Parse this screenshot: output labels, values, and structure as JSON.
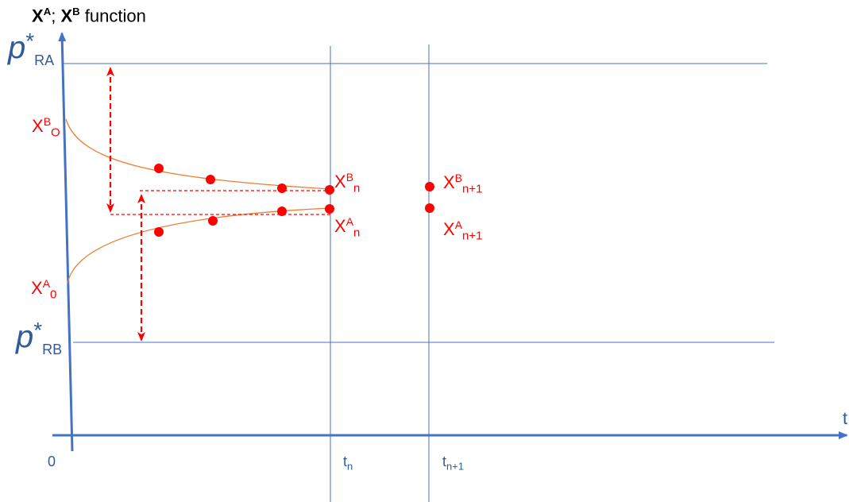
{
  "title": {
    "a": "X",
    "a_sup": "A",
    "sep": "; ",
    "b": "X",
    "b_sup": "B",
    "rest": " function"
  },
  "y_labels": {
    "p_ra": {
      "main": "p",
      "sup": "*",
      "sub": "RA"
    },
    "p_rb": {
      "main": "p",
      "sup": "*",
      "sub": "RB"
    }
  },
  "point_labels": {
    "xb0": {
      "main": "X",
      "sup": "B",
      "sub": "O"
    },
    "xa0": {
      "main": "X",
      "sup": "A",
      "sub": "0"
    },
    "xbn": {
      "main": "X",
      "sup": "B",
      "sub": "n"
    },
    "xan": {
      "main": "X",
      "sup": "A",
      "sub": "n"
    },
    "xbn1": {
      "main": "X",
      "sup": "B",
      "sub": "n+1"
    },
    "xan1": {
      "main": "X",
      "sup": "A",
      "sub": "n+1"
    }
  },
  "axis_labels": {
    "origin": "0",
    "t": "t",
    "tn": {
      "main": "t",
      "sub": "n"
    },
    "tn1": {
      "main": "t",
      "sub": "n+1"
    }
  },
  "colors": {
    "axis": "#4472c4",
    "curve": "#ed7d31",
    "points": "#ff0000",
    "text_blue": "#2e5c9a"
  }
}
